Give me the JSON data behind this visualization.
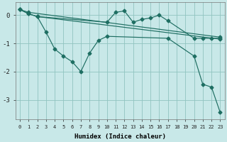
{
  "xlabel": "Humidex (Indice chaleur)",
  "background_color": "#c8e8e8",
  "grid_color": "#90c4c0",
  "line_color": "#1e6e62",
  "xlim": [
    -0.5,
    23.5
  ],
  "ylim": [
    -3.7,
    0.45
  ],
  "yticks": [
    0,
    -1,
    -2,
    -3
  ],
  "xticks": [
    0,
    1,
    2,
    3,
    4,
    5,
    6,
    7,
    8,
    9,
    10,
    11,
    12,
    13,
    14,
    15,
    16,
    17,
    18,
    19,
    20,
    21,
    22,
    23
  ],
  "line1_x": [
    0,
    1,
    23
  ],
  "line1_y": [
    0.2,
    0.1,
    -0.78
  ],
  "line2_x": [
    0,
    1,
    2,
    23
  ],
  "line2_y": [
    0.2,
    0.05,
    -0.05,
    -0.85
  ],
  "line3_x": [
    0,
    1,
    2,
    10,
    11,
    12,
    13,
    14,
    15,
    16,
    17,
    20,
    21,
    22,
    23
  ],
  "line3_y": [
    0.2,
    0.05,
    -0.05,
    -0.25,
    0.1,
    0.15,
    -0.25,
    -0.15,
    -0.1,
    0.0,
    -0.2,
    -0.82,
    -0.82,
    -0.82,
    -0.82
  ],
  "line4_x": [
    2,
    3,
    4,
    5,
    6,
    7,
    8,
    9,
    10,
    17,
    20,
    21,
    22,
    23
  ],
  "line4_y": [
    -0.05,
    -0.6,
    -1.2,
    -1.45,
    -1.65,
    -2.0,
    -1.35,
    -0.9,
    -0.75,
    -0.82,
    -1.45,
    -2.45,
    -2.55,
    -3.45
  ]
}
